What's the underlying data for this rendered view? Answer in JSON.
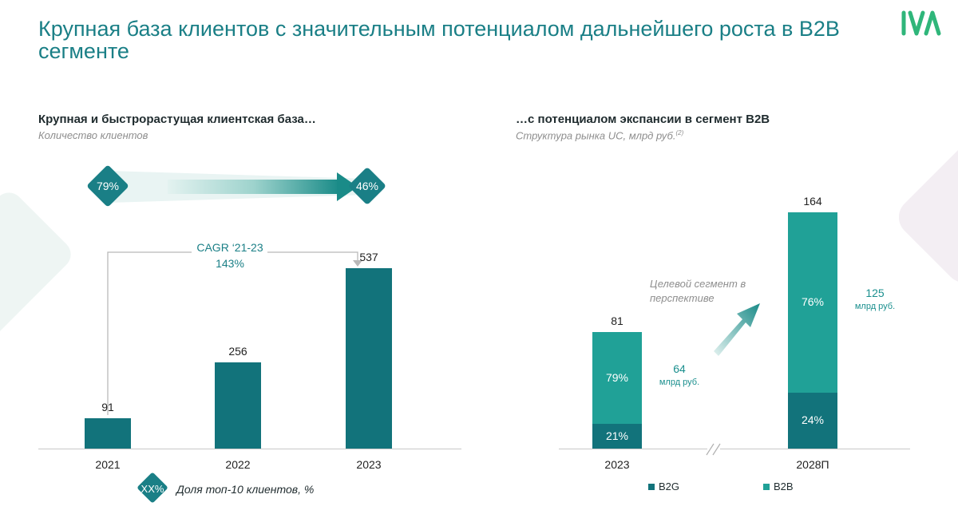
{
  "title": "Крупная база клиентов с значительным потенциалом дальнейшего роста в B2B сегменте",
  "logo_text": "IVA",
  "colors": {
    "accent": "#1a7f86",
    "b2g": "#12737b",
    "b2b": "#20a197",
    "title": "#1a7f86"
  },
  "left_panel": {
    "heading": "Крупная и быстрорастущая клиентская база…",
    "subheading": "Количество клиентов",
    "top10_start": "79%",
    "top10_end": "46%",
    "cagr_label": "CAGR ‘21-23",
    "cagr_value": "143%",
    "legend_badge": "XX%",
    "legend_text": "Доля топ-10 клиентов, %"
  },
  "right_panel": {
    "heading": "…с потенциалом экспансии в сегмент B2B",
    "subheading": "Структура рынка UC, млрд руб.",
    "footnote_mark": "(2)",
    "target_note": "Целевой сегмент в перспективе",
    "legend": [
      {
        "label": "B2G",
        "color": "#12737b"
      },
      {
        "label": "B2B",
        "color": "#20a197"
      }
    ]
  },
  "chart_data": [
    {
      "type": "bar",
      "title": "Крупная и быстрорастущая клиентская база…",
      "ylabel": "Количество клиентов",
      "categories": [
        "2021",
        "2022",
        "2023"
      ],
      "values": [
        91,
        256,
        537
      ],
      "value_labels": [
        "91",
        "256",
        "537"
      ],
      "ylim": [
        0,
        600
      ],
      "grid": false,
      "annotations": {
        "cagr": "CAGR ‘21-23 143%",
        "top10_share": [
          "79%",
          "46%"
        ]
      }
    },
    {
      "type": "bar",
      "stacked": true,
      "title": "…с потенциалом экспансии в сегмент B2B",
      "ylabel": "Структура рынка UC, млрд руб.",
      "categories": [
        "2023",
        "2028П"
      ],
      "totals": [
        81,
        164
      ],
      "total_labels": [
        "81",
        "164"
      ],
      "series": [
        {
          "name": "B2G",
          "values": [
            17,
            39
          ],
          "share_labels": [
            "21%",
            "24%"
          ]
        },
        {
          "name": "B2B",
          "values": [
            64,
            125
          ],
          "share_labels": [
            "79%",
            "76%"
          ]
        }
      ],
      "b2b_labels": [
        {
          "value": "64",
          "unit": "млрд руб."
        },
        {
          "value": "125",
          "unit": "млрд руб."
        }
      ],
      "ylim": [
        0,
        180
      ],
      "grid": false,
      "legend": "bottom"
    }
  ]
}
